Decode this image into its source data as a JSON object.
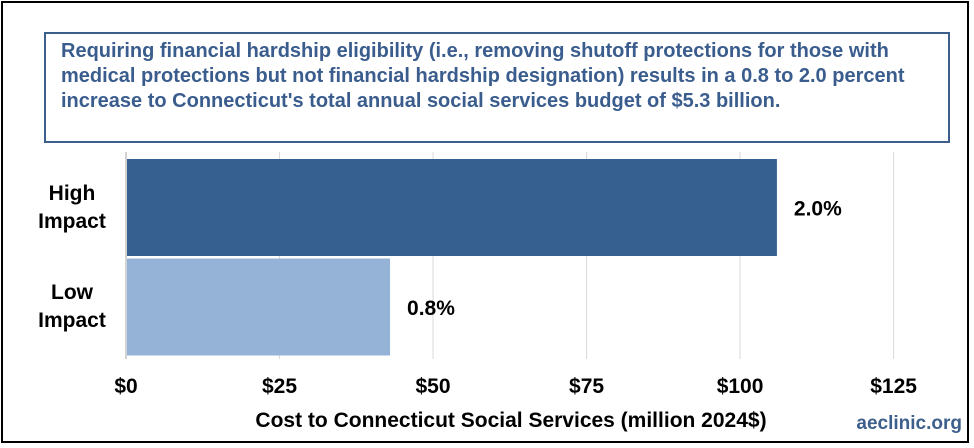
{
  "chart_data": {
    "type": "bar",
    "orientation": "horizontal",
    "categories": [
      "High\nImpact",
      "Low\nImpact"
    ],
    "values": [
      106,
      43
    ],
    "bar_colors": [
      "#36608f",
      "#95b3d7"
    ],
    "data_labels": [
      "2.0%",
      "0.8%"
    ],
    "xlim": [
      0,
      135
    ],
    "xticks": [
      0,
      25,
      50,
      75,
      100,
      125
    ],
    "xtick_labels": [
      "$0",
      "$25",
      "$50",
      "$75",
      "$100",
      "$125"
    ],
    "xlabel": "Cost to Connecticut Social Services (million 2024$)",
    "grid": "vertical",
    "annotation": "Requiring financial hardship eligibility (i.e., removing shutoff protections for those with medical protections but not financial hardship designation) results in a 0.8 to 2.0 percent increase to Connecticut's total annual social services budget of $5.3 billion."
  },
  "watermark": "aeclinic.org",
  "colors": {
    "callout_text": "#3a5d8e",
    "callout_border": "#3d5f8c",
    "grid": "#d9d9d9"
  }
}
